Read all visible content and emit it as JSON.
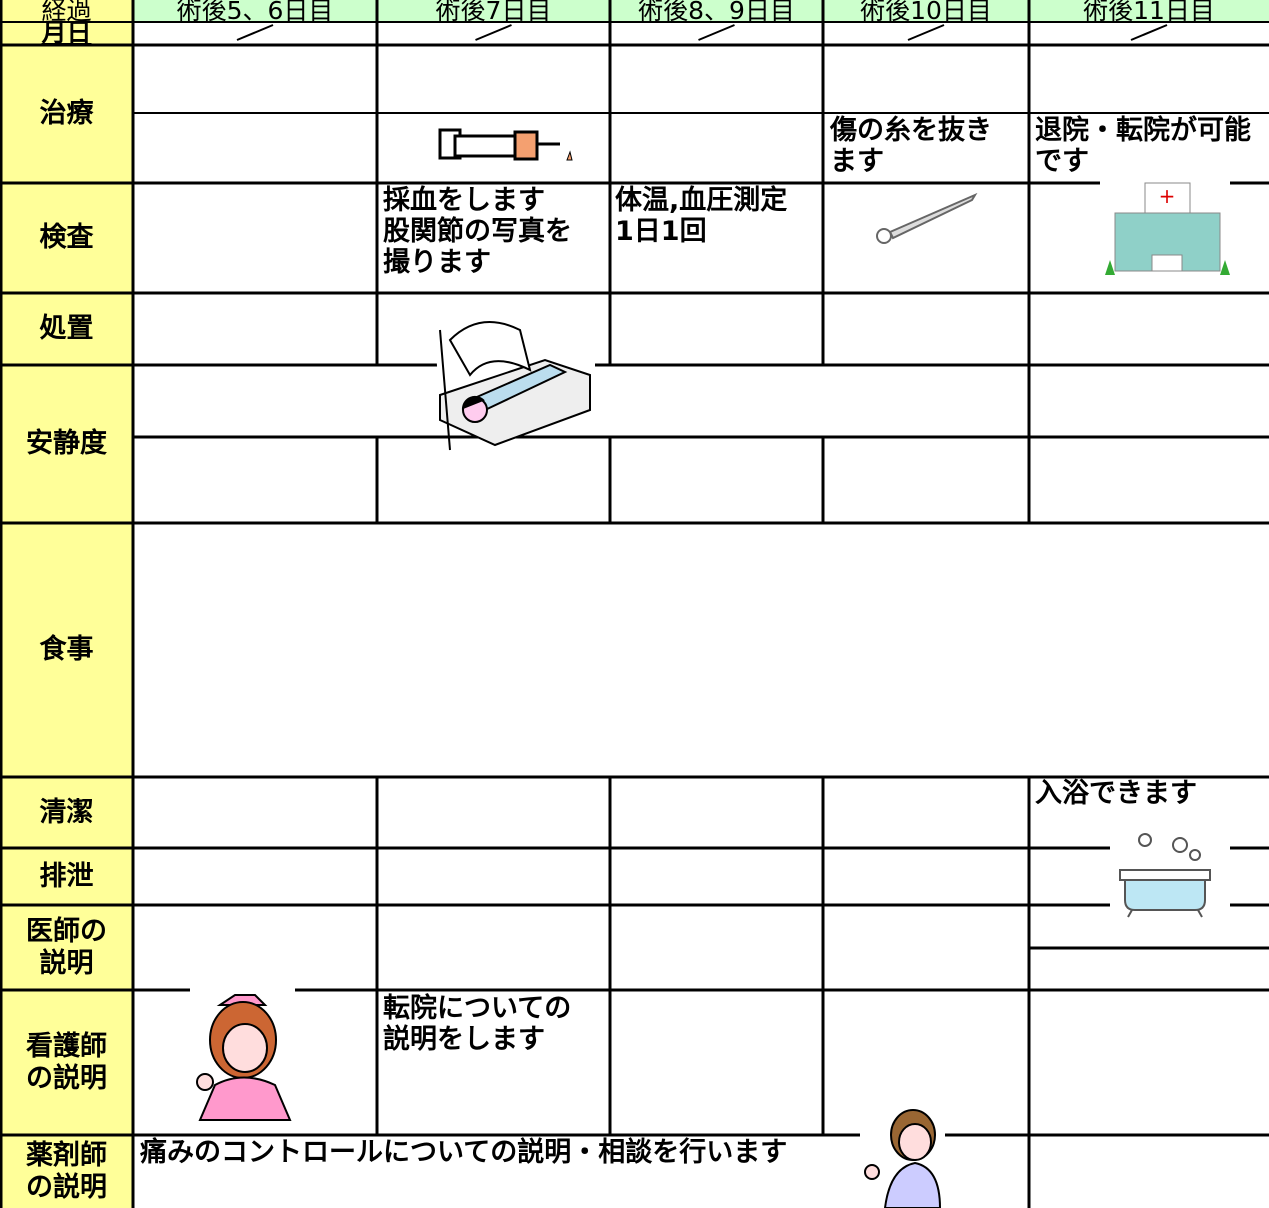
{
  "header": {
    "elapsed_label": "経過",
    "days": [
      "術後5、6日目",
      "術後7日目",
      "術後8、9日目",
      "術後10日目",
      "術後11日目"
    ]
  },
  "date_label": "月日",
  "row_labels": [
    "治療",
    "検査",
    "処置",
    "安静度",
    "食事",
    "清潔",
    "排泄",
    "医師の\n説明",
    "看護師\nの説明",
    "薬剤師\nの説明"
  ],
  "notes": [
    "傷の糸を抜き\nます",
    "退院・転院が可能\nです",
    "採血をします\n股関節の写真を\n撮ります",
    "体温,血圧測定\n1日1回",
    "入浴できます",
    "転院についての\n説明をします",
    "痛みのコントロールについての説明・相談を行います"
  ]
}
